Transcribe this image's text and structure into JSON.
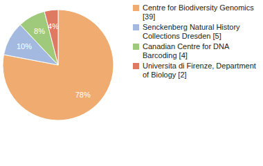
{
  "chart_data": {
    "type": "pie",
    "categories": [
      "Centre for Biodiversity Genomics [39]",
      "Senckenberg Natural History Collections Dresden [5]",
      "Canadian Centre for DNA Barcoding [4]",
      "Universita di Firenze, Department of Biology [2]"
    ],
    "values": [
      78,
      10,
      8,
      4
    ],
    "value_labels": [
      "78%",
      "10%",
      "8%",
      "4%"
    ],
    "colors": [
      "#f0ac70",
      "#a3b9e0",
      "#9fca7b",
      "#df7a62"
    ],
    "data_labels": true,
    "legend": "right"
  }
}
